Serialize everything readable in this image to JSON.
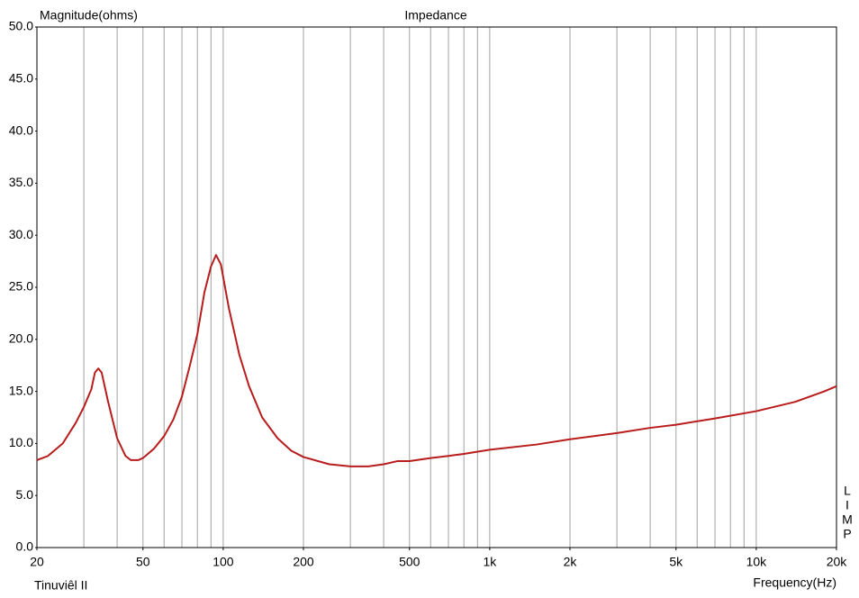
{
  "chart_data": {
    "type": "line",
    "title": "Impedance",
    "y_label": "Magnitude(ohms)",
    "x_label": "Frequency(Hz)",
    "footer": "Tinuviêl II",
    "side_label": [
      "L",
      "I",
      "M",
      "P"
    ],
    "x_scale": "log",
    "grid": true,
    "xlim": [
      20,
      20000
    ],
    "ylim": [
      0,
      50
    ],
    "xticks": [
      20,
      50,
      100,
      200,
      500,
      {
        "value": 1000,
        "label": "1k"
      },
      {
        "value": 2000,
        "label": "2k"
      },
      {
        "value": 5000,
        "label": "5k"
      },
      {
        "value": 10000,
        "label": "10k"
      },
      {
        "value": 20000,
        "label": "20k"
      }
    ],
    "xgrid": [
      30,
      40,
      50,
      60,
      70,
      80,
      90,
      100,
      200,
      300,
      400,
      500,
      600,
      700,
      800,
      900,
      1000,
      2000,
      3000,
      4000,
      5000,
      6000,
      7000,
      8000,
      9000,
      10000
    ],
    "yticks": [
      {
        "value": 0,
        "label": "0.0"
      },
      {
        "value": 5,
        "label": "5.0"
      },
      {
        "value": 10,
        "label": "10.0"
      },
      {
        "value": 15,
        "label": "15.0"
      },
      {
        "value": 20,
        "label": "20.0"
      },
      {
        "value": 25,
        "label": "25.0"
      },
      {
        "value": 30,
        "label": "30.0"
      },
      {
        "value": 35,
        "label": "35.0"
      },
      {
        "value": 40,
        "label": "40.0"
      },
      {
        "value": 45,
        "label": "45.0"
      },
      {
        "value": 50,
        "label": "50.0"
      }
    ],
    "x": [
      20,
      22,
      25,
      28,
      30,
      32,
      33,
      34,
      35,
      37,
      40,
      43,
      45,
      48,
      50,
      55,
      60,
      65,
      70,
      75,
      80,
      85,
      90,
      94,
      98,
      105,
      115,
      125,
      140,
      160,
      180,
      200,
      250,
      300,
      350,
      400,
      450,
      500,
      600,
      700,
      800,
      1000,
      1500,
      2000,
      3000,
      4000,
      5000,
      7000,
      10000,
      14000,
      18000,
      20000
    ],
    "series": [
      {
        "color": "#b81c1c",
        "values": [
          8.4,
          8.8,
          10,
          12,
          13.5,
          15.2,
          16.8,
          17.2,
          16.8,
          14,
          10.5,
          8.8,
          8.4,
          8.4,
          8.6,
          9.5,
          10.7,
          12.3,
          14.5,
          17.5,
          20.5,
          24.5,
          27,
          28.1,
          27.2,
          23,
          18.5,
          15.5,
          12.5,
          10.5,
          9.3,
          8.7,
          8.0,
          7.8,
          7.8,
          8.0,
          8.3,
          8.3,
          8.6,
          8.8,
          9.0,
          9.4,
          9.9,
          10.4,
          11.0,
          11.5,
          11.8,
          12.4,
          13.1,
          14.0,
          15.0,
          15.5
        ]
      }
    ]
  }
}
